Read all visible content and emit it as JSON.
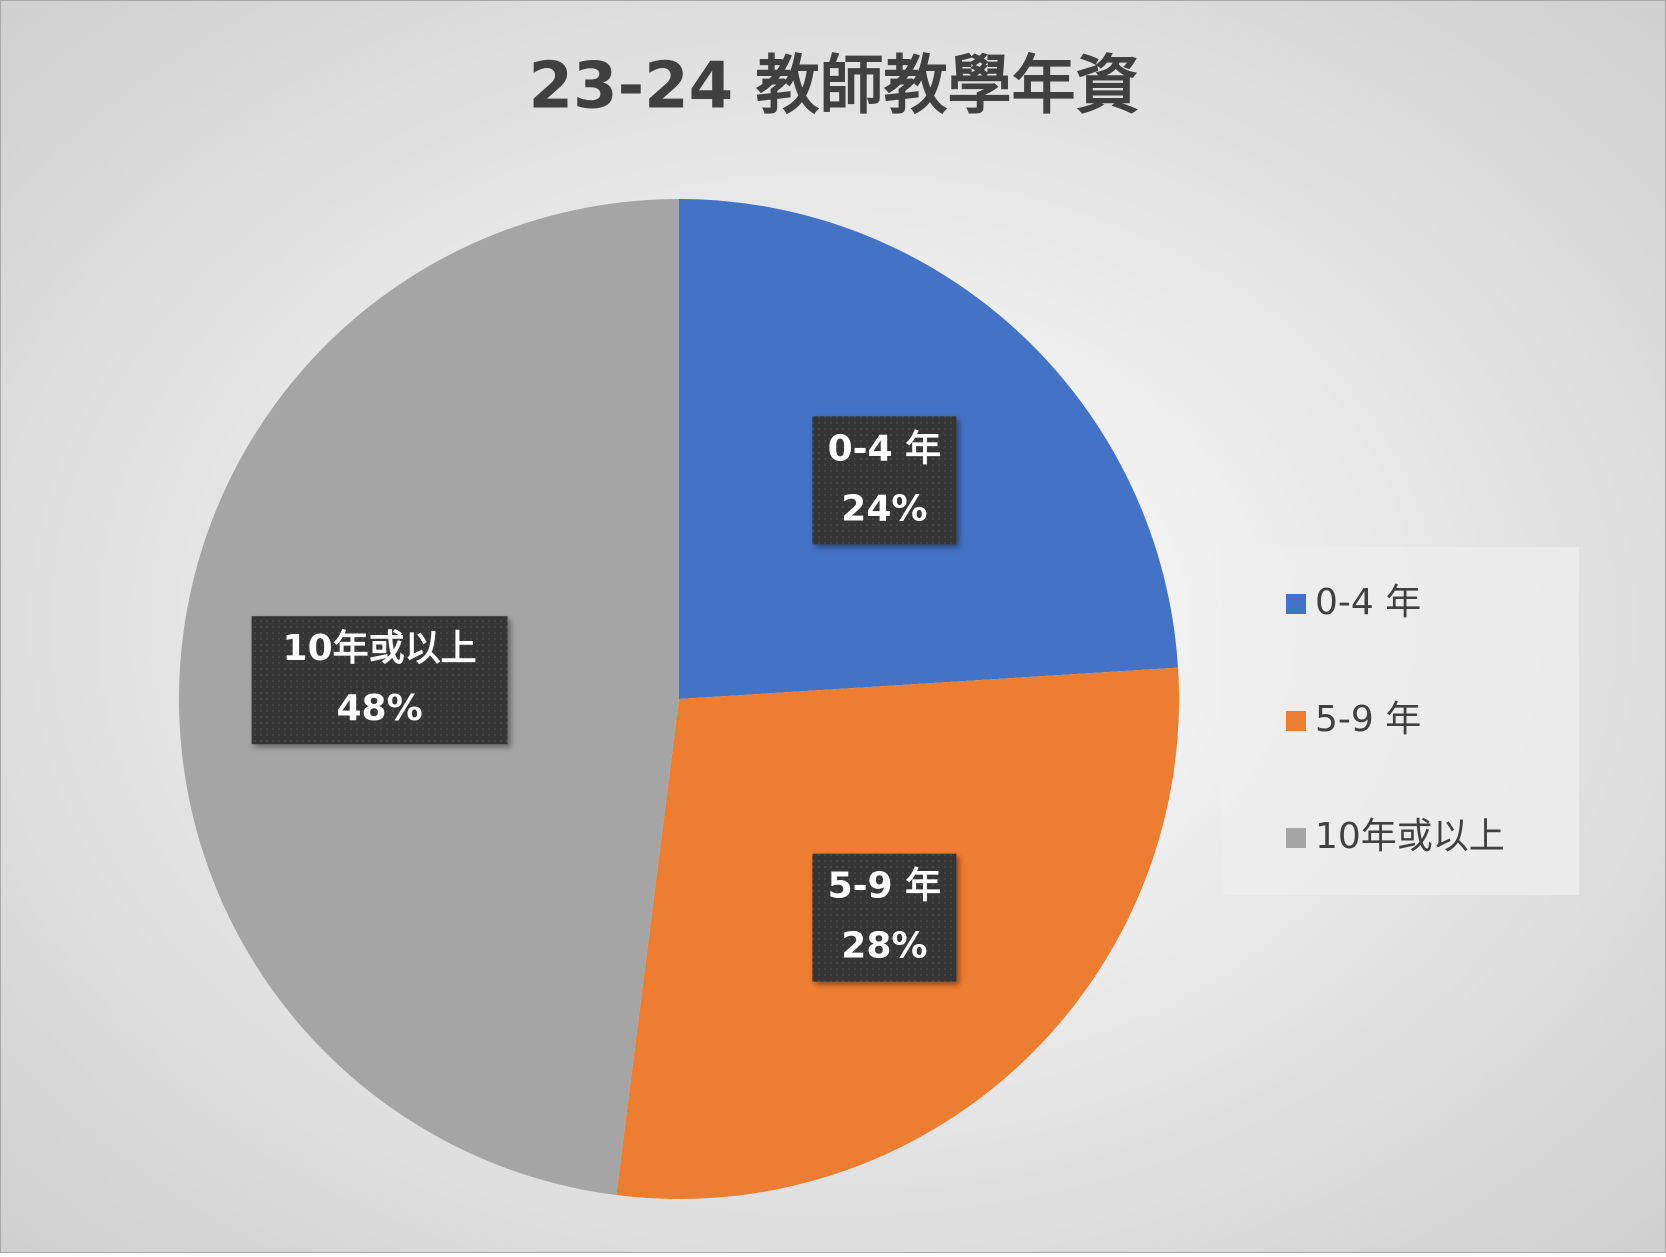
{
  "chart_data": {
    "type": "pie",
    "title": "23-24 教師教學年資",
    "categories": [
      "0-4 年",
      "5-9 年",
      "10年或以上"
    ],
    "values": [
      24,
      28,
      48
    ],
    "value_labels": [
      "24%",
      "28%",
      "48%"
    ],
    "colors": [
      "#4472c4",
      "#ed7d31",
      "#a5a5a5"
    ],
    "legend": "right"
  }
}
